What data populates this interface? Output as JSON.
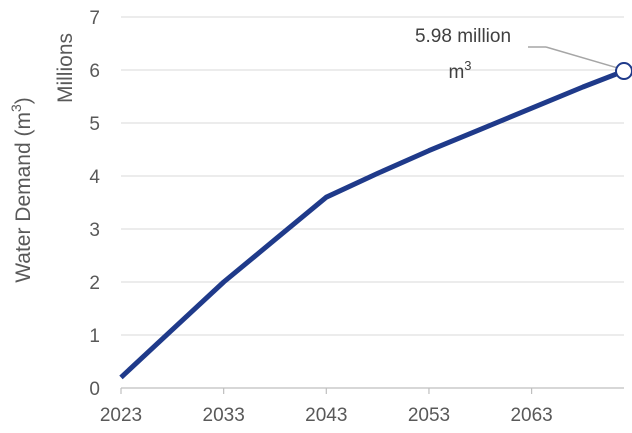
{
  "chart_data": {
    "type": "line",
    "title": "",
    "ylabel": "Water Demand (m³)",
    "ylabel_parts": {
      "base": "Water Demand (m",
      "sup": "3",
      "close": ")"
    },
    "units_label": "Millions",
    "xlabel": "",
    "x_ticks": [
      2023,
      2033,
      2043,
      2053,
      2063
    ],
    "y_ticks": [
      0,
      1,
      2,
      3,
      4,
      5,
      6,
      7
    ],
    "xlim": [
      2023,
      2072
    ],
    "ylim": [
      0,
      7
    ],
    "grid": "horizontal",
    "legend": "none",
    "series": [
      {
        "x": [
          2023,
          2028,
          2033,
          2038,
          2043,
          2048,
          2053,
          2058,
          2063,
          2068,
          2072
        ],
        "values": [
          0.2,
          1.1,
          2.0,
          2.8,
          3.6,
          4.05,
          4.48,
          4.88,
          5.28,
          5.68,
          5.98
        ],
        "color": "#1f3a8a"
      }
    ],
    "annotation": {
      "x": 2072,
      "y": 5.98,
      "line1": "5.98 million",
      "line2_base": "m",
      "line2_sup": "3"
    }
  },
  "colors": {
    "line": "#1f3a8a",
    "grid": "#d9d9d9",
    "axis": "#bfbfbf",
    "text": "#595959",
    "leader": "#a6a6a6"
  }
}
